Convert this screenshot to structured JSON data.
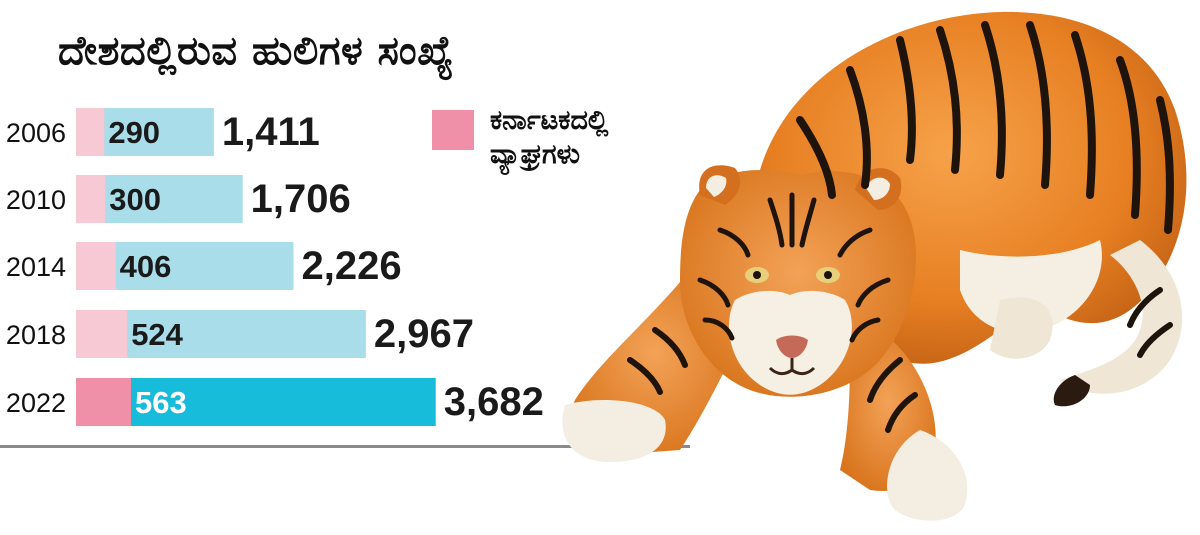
{
  "title": "ದೇಶದಲ್ಲಿರುವ ಹುಲಿಗಳ ಸಂಖ್ಯೆ",
  "legend": {
    "line1": "ಕರ್ನಾಟಕದಲ್ಲಿ",
    "line2": "ವ್ಯಾಘ್ರಗಳು",
    "color": "#f08fa8"
  },
  "colors": {
    "karnataka_light": "#f7c9d4",
    "karnataka_highlight": "#f08fa8",
    "india_light": "#a9dde9",
    "india_highlight": "#16bcd9"
  },
  "chart_data": {
    "type": "bar",
    "orientation": "horizontal",
    "categories": [
      "2006",
      "2010",
      "2014",
      "2018",
      "2022"
    ],
    "series": [
      {
        "name": "ಕರ್ನಾಟಕದಲ್ಲಿ ವ್ಯಾಘ್ರಗಳು",
        "values": [
          290,
          300,
          406,
          524,
          563
        ],
        "labels": [
          "290",
          "300",
          "406",
          "524",
          "563"
        ]
      },
      {
        "values": [
          1411,
          1706,
          2226,
          2967,
          3682
        ],
        "labels": [
          "1,411",
          "1,706",
          "2,226",
          "2,967",
          "3,682"
        ]
      }
    ],
    "highlight_category": "2022",
    "grid": false,
    "legend_position": "top-right"
  },
  "image": {
    "subject": "tiger-illustration"
  }
}
